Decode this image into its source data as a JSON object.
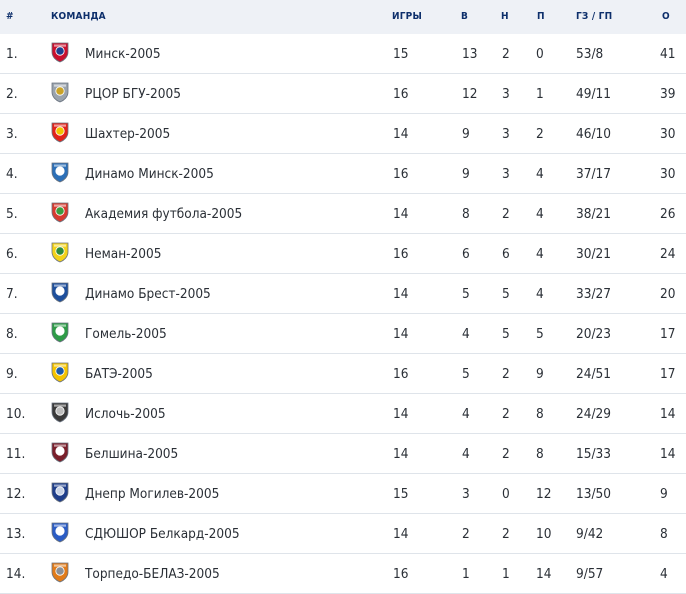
{
  "header": {
    "rank": "#",
    "team": "КОМАНДА",
    "games": "ИГРЫ",
    "wins": "В",
    "draws": "Н",
    "losses": "П",
    "goals": "ГЗ / ГП",
    "points": "О"
  },
  "rows": [
    {
      "rank": "1.",
      "team": "Минск-2005",
      "games": "15",
      "wins": "13",
      "draws": "2",
      "losses": "0",
      "goals": "53/8",
      "points": "41",
      "logo": "minsk-icon",
      "c1": "#c8102e",
      "c2": "#1d3f8f"
    },
    {
      "rank": "2.",
      "team": "РЦОР БГУ-2005",
      "games": "16",
      "wins": "12",
      "draws": "3",
      "losses": "1",
      "goals": "49/11",
      "points": "39",
      "logo": "rcor-bgu-icon",
      "c1": "#9aa3ad",
      "c2": "#c9a227"
    },
    {
      "rank": "3.",
      "team": "Шахтер-2005",
      "games": "14",
      "wins": "9",
      "draws": "3",
      "losses": "2",
      "goals": "46/10",
      "points": "30",
      "logo": "shakhtyor-icon",
      "c1": "#e2231a",
      "c2": "#f2c200"
    },
    {
      "rank": "4.",
      "team": "Динамо Минск-2005",
      "games": "16",
      "wins": "9",
      "draws": "3",
      "losses": "4",
      "goals": "37/17",
      "points": "30",
      "logo": "dinamo-minsk-icon",
      "c1": "#2c6fb7",
      "c2": "#ffffff"
    },
    {
      "rank": "5.",
      "team": "Академия футбола-2005",
      "games": "14",
      "wins": "8",
      "draws": "2",
      "losses": "4",
      "goals": "38/21",
      "points": "26",
      "logo": "academy-icon",
      "c1": "#d63a2f",
      "c2": "#3a9b3e"
    },
    {
      "rank": "6.",
      "team": "Неман-2005",
      "games": "16",
      "wins": "6",
      "draws": "6",
      "losses": "4",
      "goals": "30/21",
      "points": "24",
      "logo": "neman-icon",
      "c1": "#f3d21a",
      "c2": "#2e8b3a"
    },
    {
      "rank": "7.",
      "team": "Динамо Брест-2005",
      "games": "14",
      "wins": "5",
      "draws": "5",
      "losses": "4",
      "goals": "33/27",
      "points": "20",
      "logo": "dinamo-brest-icon",
      "c1": "#1e4f9c",
      "c2": "#ffffff"
    },
    {
      "rank": "8.",
      "team": "Гомель-2005",
      "games": "14",
      "wins": "4",
      "draws": "5",
      "losses": "5",
      "goals": "20/23",
      "points": "17",
      "logo": "gomel-icon",
      "c1": "#2e9b47",
      "c2": "#ffffff"
    },
    {
      "rank": "9.",
      "team": "БАТЭ-2005",
      "games": "16",
      "wins": "5",
      "draws": "2",
      "losses": "9",
      "goals": "24/51",
      "points": "17",
      "logo": "bate-icon",
      "c1": "#f4c300",
      "c2": "#1c5aa8"
    },
    {
      "rank": "10.",
      "team": "Ислочь-2005",
      "games": "14",
      "wins": "4",
      "draws": "2",
      "losses": "8",
      "goals": "24/29",
      "points": "14",
      "logo": "isloch-icon",
      "c1": "#3a3a3a",
      "c2": "#bdbdbd"
    },
    {
      "rank": "11.",
      "team": "Белшина-2005",
      "games": "14",
      "wins": "4",
      "draws": "2",
      "losses": "8",
      "goals": "15/33",
      "points": "14",
      "logo": "belshina-icon",
      "c1": "#7a1f2b",
      "c2": "#ffffff"
    },
    {
      "rank": "12.",
      "team": "Днепр Могилев-2005",
      "games": "15",
      "wins": "3",
      "draws": "0",
      "losses": "12",
      "goals": "13/50",
      "points": "9",
      "logo": "dnepr-icon",
      "c1": "#1f3e8a",
      "c2": "#c9d3e6"
    },
    {
      "rank": "13.",
      "team": "СДЮШОР Белкард-2005",
      "games": "14",
      "wins": "2",
      "draws": "2",
      "losses": "10",
      "goals": "9/42",
      "points": "8",
      "logo": "belkard-icon",
      "c1": "#2b5cc4",
      "c2": "#ffffff"
    },
    {
      "rank": "14.",
      "team": "Торпедо-БЕЛАЗ-2005",
      "games": "16",
      "wins": "1",
      "draws": "1",
      "losses": "14",
      "goals": "9/57",
      "points": "4",
      "logo": "torpedo-belaz-icon",
      "c1": "#e07b1a",
      "c2": "#8a8f96"
    }
  ]
}
